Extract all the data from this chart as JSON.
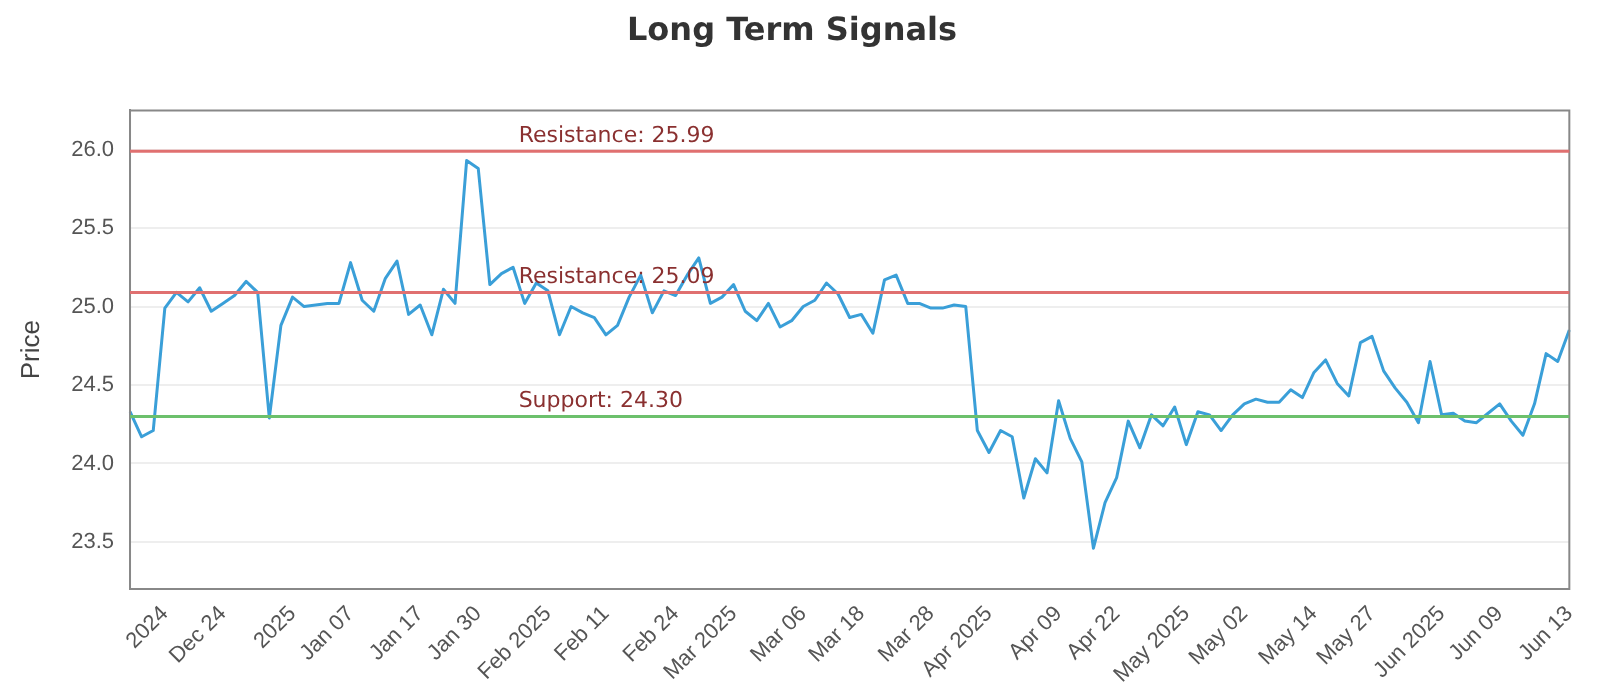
{
  "chart_data": {
    "type": "line",
    "title": "Long Term Signals",
    "ylabel": "Price",
    "categories": [
      null,
      null,
      null,
      "2024",
      null,
      null,
      null,
      null,
      "Dec 24",
      null,
      null,
      null,
      null,
      null,
      "2025",
      null,
      null,
      null,
      null,
      "Jan 07",
      null,
      null,
      null,
      null,
      null,
      "Jan 17",
      null,
      null,
      null,
      null,
      "Jan 30",
      null,
      null,
      null,
      null,
      null,
      "Feb 2025",
      null,
      null,
      null,
      null,
      "Feb 11",
      null,
      null,
      null,
      null,
      null,
      "Feb 24",
      null,
      null,
      null,
      null,
      "Mar 2025",
      null,
      null,
      null,
      null,
      null,
      "Mar 06",
      null,
      null,
      null,
      null,
      "Mar 18",
      null,
      null,
      null,
      null,
      null,
      "Mar 28",
      null,
      null,
      null,
      null,
      "Apr 2025",
      null,
      null,
      null,
      null,
      null,
      "Apr 09",
      null,
      null,
      null,
      null,
      "Apr 22",
      null,
      null,
      null,
      null,
      null,
      "May 2025",
      null,
      null,
      null,
      null,
      "May 02",
      null,
      null,
      null,
      null,
      null,
      "May 14",
      null,
      null,
      null,
      null,
      "May 27",
      null,
      null,
      null,
      null,
      null,
      "Jun 2025",
      null,
      null,
      null,
      null,
      "Jun 09",
      null,
      null,
      null,
      null,
      null,
      "Jun 13"
    ],
    "series": [
      {
        "color": "#3a9fd8",
        "values": [
          24.33,
          24.17,
          24.21,
          24.99,
          25.09,
          25.03,
          25.12,
          24.97,
          25.02,
          25.07,
          25.16,
          25.09,
          24.29,
          24.88,
          25.06,
          25.0,
          25.01,
          25.02,
          25.02,
          25.28,
          25.04,
          24.97,
          25.18,
          25.29,
          24.95,
          25.01,
          24.82,
          25.11,
          25.02,
          25.93,
          25.88,
          25.14,
          25.21,
          25.25,
          25.02,
          25.15,
          25.1,
          24.82,
          25.0,
          24.96,
          24.93,
          24.82,
          24.88,
          25.06,
          25.2,
          24.96,
          25.1,
          25.07,
          25.2,
          25.31,
          25.02,
          25.06,
          25.14,
          24.97,
          24.91,
          25.02,
          24.87,
          24.91,
          25.0,
          25.04,
          25.15,
          25.08,
          24.93,
          24.95,
          24.83,
          25.17,
          25.2,
          25.02,
          25.02,
          24.99,
          24.99,
          25.01,
          25.0,
          24.21,
          24.07,
          24.21,
          24.17,
          23.78,
          24.03,
          23.94,
          24.4,
          24.16,
          24.01,
          23.46,
          23.75,
          23.91,
          24.27,
          24.1,
          24.31,
          24.24,
          24.36,
          24.12,
          24.33,
          24.31,
          24.21,
          24.31,
          24.38,
          24.41,
          24.39,
          24.39,
          24.47,
          24.42,
          24.58,
          24.66,
          24.51,
          24.43,
          24.77,
          24.81,
          24.59,
          24.48,
          24.39,
          24.26,
          24.65,
          24.31,
          24.32,
          24.27,
          24.26,
          24.32,
          24.38,
          24.27,
          24.18,
          24.38,
          24.7,
          24.65,
          24.85
        ]
      }
    ],
    "ylim": [
      23.2,
      26.25
    ],
    "yticks": [
      23.5,
      {
        "value": 24,
        "label": "24.0"
      },
      24.5,
      {
        "value": 25,
        "label": "25.0"
      },
      25.5,
      {
        "value": 26,
        "label": "26.0"
      }
    ],
    "grid": "y",
    "legend": false,
    "marker": "none",
    "line_style": "solid",
    "ref_lines": [
      {
        "axis": "y",
        "value": 25.99,
        "label": "Resistance: 25.99",
        "color": "#e07070"
      },
      {
        "axis": "y",
        "value": 25.09,
        "label": "Resistance: 25.09",
        "color": "#e07070"
      },
      {
        "axis": "y",
        "value": 24.3,
        "label": "Support: 24.30",
        "color": "#6cc06c"
      }
    ]
  }
}
